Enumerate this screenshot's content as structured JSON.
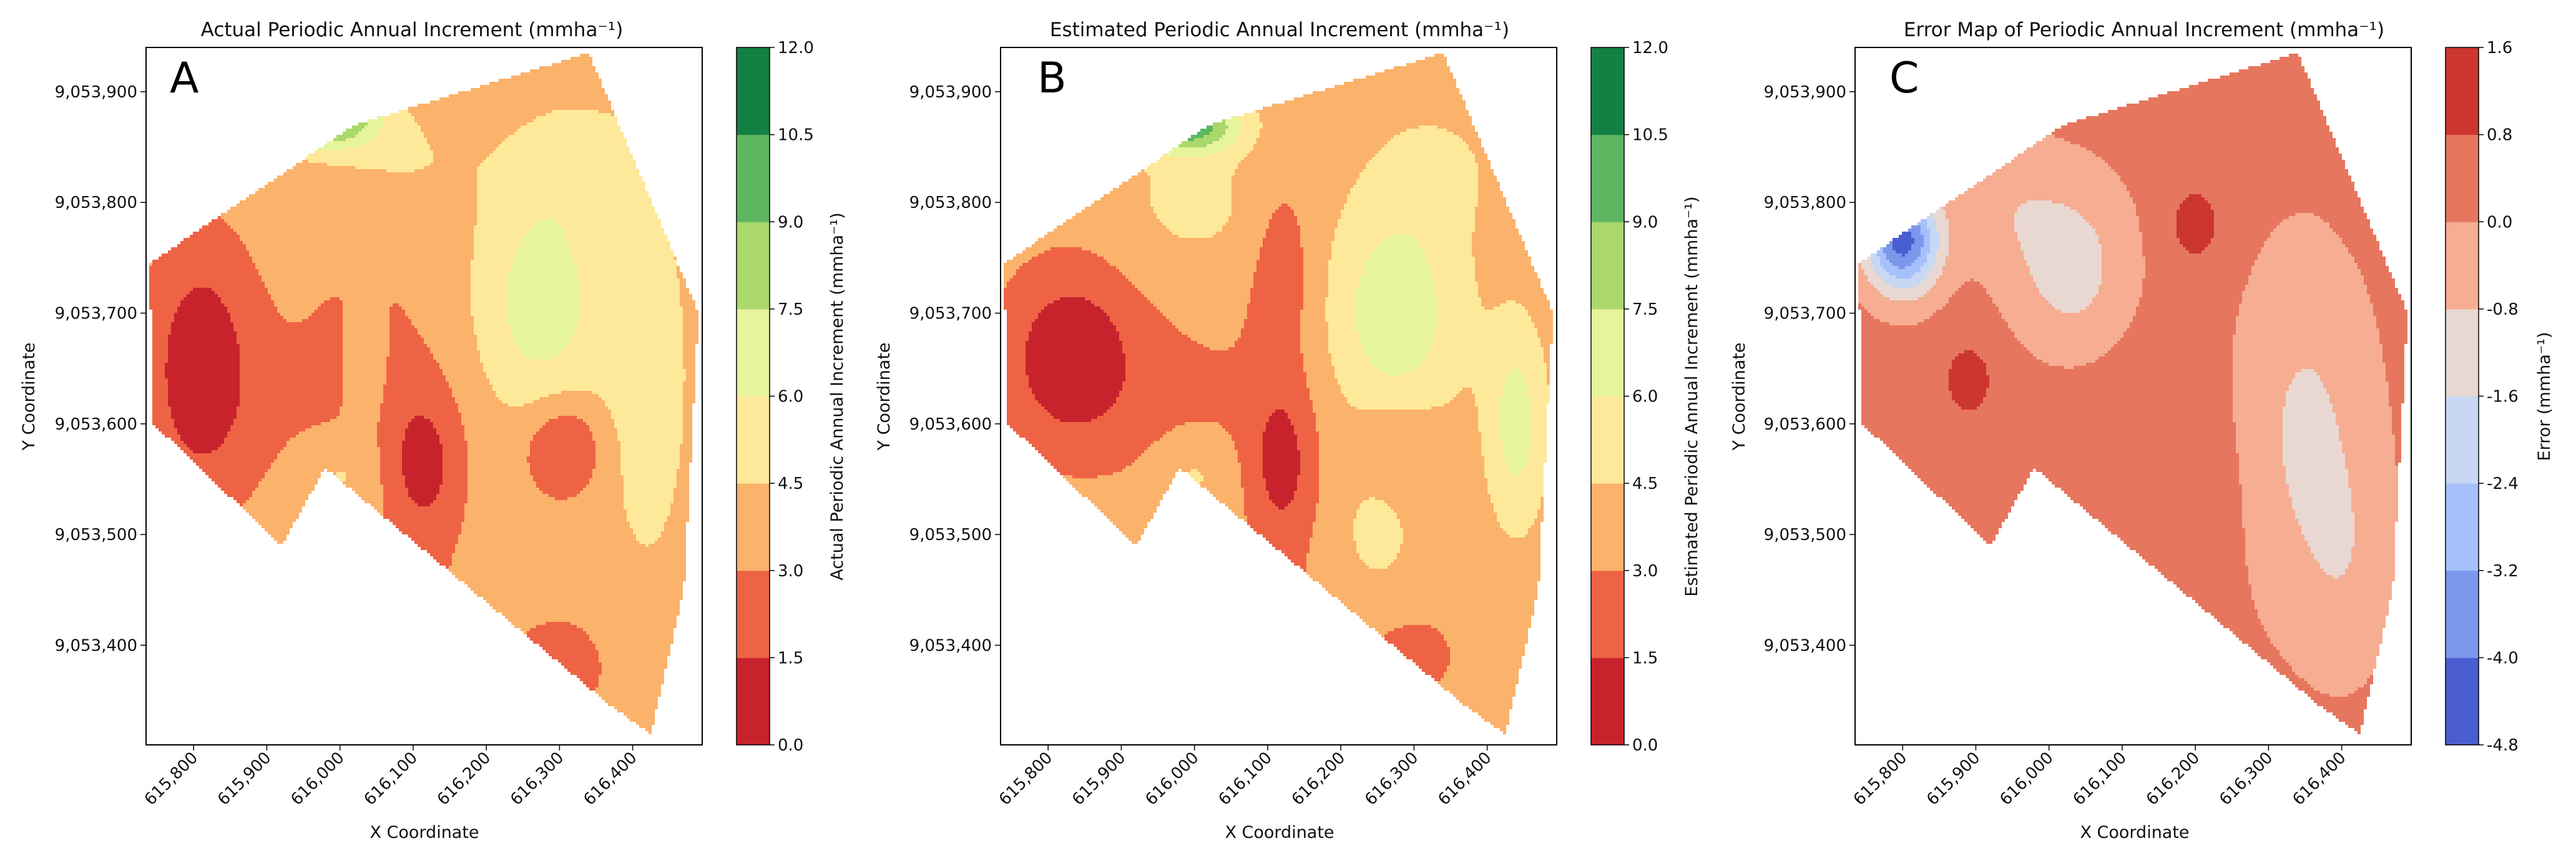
{
  "chart_data": [
    {
      "type": "heatmap",
      "panel_label": "A",
      "title": "Actual Periodic Annual Increment (mmha⁻¹)",
      "xlabel": "X Coordinate",
      "ylabel": "Y Coordinate",
      "xticks": [
        615800,
        615900,
        616000,
        616100,
        616200,
        616300,
        616400
      ],
      "xtick_labels": [
        "615,800",
        "615,900",
        "616,000",
        "616,100",
        "616,200",
        "616,300",
        "616,400"
      ],
      "xlim": [
        615735,
        616495
      ],
      "yticks": [
        9053400,
        9053500,
        9053600,
        9053700,
        9053800,
        9053900
      ],
      "ytick_labels": [
        "9,053,400",
        "9,053,500",
        "9,053,600",
        "9,053,700",
        "9,053,800",
        "9,053,900"
      ],
      "ylim": [
        9053310,
        9053940
      ],
      "colorbar": {
        "label": "Actual Periodic Annual Increment (mmha⁻¹)",
        "levels": [
          0.0,
          1.5,
          3.0,
          4.5,
          6.0,
          7.5,
          9.0,
          10.5,
          12.0
        ],
        "level_labels": [
          "0.0",
          "1.5",
          "3.0",
          "4.5",
          "6.0",
          "7.5",
          "9.0",
          "10.5",
          "12.0"
        ],
        "colors": [
          "#c8232c",
          "#ef6345",
          "#fbb26a",
          "#fee899",
          "#e6f49c",
          "#abd86a",
          "#5eb760",
          "#148144"
        ]
      },
      "field": {
        "base": 3.6,
        "hull": [
          [
            615740,
            9053745
          ],
          [
            616020,
            9053870
          ],
          [
            616340,
            9053935
          ],
          [
            616420,
            9053810
          ],
          [
            616490,
            9053700
          ],
          [
            616470,
            9053450
          ],
          [
            616425,
            9053320
          ],
          [
            616370,
            9053345
          ],
          [
            615980,
            9053560
          ],
          [
            615920,
            9053490
          ],
          [
            615745,
            9053600
          ]
        ],
        "bumps": [
          [
            615810,
            9053650,
            70,
            110,
            -3.2
          ],
          [
            616115,
            9053560,
            50,
            70,
            -2.5
          ],
          [
            616000,
            9053620,
            160,
            90,
            -0.8
          ],
          [
            616120,
            9053420,
            140,
            60,
            -0.6
          ],
          [
            616040,
            9053710,
            90,
            90,
            -0.5
          ],
          [
            616275,
            9053710,
            90,
            110,
            3.2
          ],
          [
            616420,
            9053640,
            60,
            180,
            1.8
          ],
          [
            616330,
            9053840,
            90,
            60,
            1.2
          ],
          [
            616080,
            9053840,
            120,
            50,
            1.0
          ],
          [
            616000,
            9053555,
            50,
            35,
            1.4
          ],
          [
            616035,
            9053645,
            30,
            60,
            1.2
          ],
          [
            615980,
            9053875,
            70,
            25,
            6.5
          ],
          [
            616305,
            9053580,
            55,
            45,
            -2.6
          ],
          [
            616310,
            9053380,
            70,
            50,
            -1.0
          ]
        ]
      }
    },
    {
      "type": "heatmap",
      "panel_label": "B",
      "title": "Estimated Periodic Annual Increment (mmha⁻¹)",
      "xlabel": "X Coordinate",
      "ylabel": "Y Coordinate",
      "xticks": [
        615800,
        615900,
        616000,
        616100,
        616200,
        616300,
        616400
      ],
      "xtick_labels": [
        "615,800",
        "615,900",
        "616,000",
        "616,100",
        "616,200",
        "616,300",
        "616,400"
      ],
      "xlim": [
        615735,
        616495
      ],
      "yticks": [
        9053400,
        9053500,
        9053600,
        9053700,
        9053800,
        9053900
      ],
      "ytick_labels": [
        "9,053,400",
        "9,053,500",
        "9,053,600",
        "9,053,700",
        "9,053,800",
        "9,053,900"
      ],
      "ylim": [
        9053310,
        9053940
      ],
      "colorbar": {
        "label": "Estimated Periodic Annual Increment (mmha⁻¹)",
        "levels": [
          0.0,
          1.5,
          3.0,
          4.5,
          6.0,
          7.5,
          9.0,
          10.5,
          12.0
        ],
        "level_labels": [
          "0.0",
          "1.5",
          "3.0",
          "4.5",
          "6.0",
          "7.5",
          "9.0",
          "10.5",
          "12.0"
        ],
        "colors": [
          "#c8232c",
          "#ef6345",
          "#fbb26a",
          "#fee899",
          "#e6f49c",
          "#abd86a",
          "#5eb760",
          "#148144"
        ]
      },
      "field": {
        "base": 3.7,
        "hull": [
          [
            615740,
            9053745
          ],
          [
            616020,
            9053870
          ],
          [
            616340,
            9053935
          ],
          [
            616420,
            9053810
          ],
          [
            616490,
            9053700
          ],
          [
            616470,
            9053450
          ],
          [
            616425,
            9053320
          ],
          [
            616370,
            9053345
          ],
          [
            615980,
            9053560
          ],
          [
            615920,
            9053490
          ],
          [
            615745,
            9053600
          ]
        ],
        "bumps": [
          [
            615830,
            9053660,
            90,
            80,
            -3.4
          ],
          [
            616120,
            9053560,
            45,
            75,
            -2.6
          ],
          [
            616120,
            9053740,
            45,
            90,
            -1.6
          ],
          [
            616000,
            9053620,
            150,
            90,
            -0.9
          ],
          [
            616120,
            9053430,
            120,
            50,
            -0.7
          ],
          [
            616275,
            9053700,
            90,
            100,
            3.4
          ],
          [
            616440,
            9053600,
            40,
            90,
            3.0
          ],
          [
            616330,
            9053830,
            90,
            60,
            1.0
          ],
          [
            616000,
            9053800,
            100,
            60,
            1.2
          ],
          [
            616000,
            9053555,
            50,
            35,
            1.4
          ],
          [
            616250,
            9053500,
            50,
            60,
            1.3
          ],
          [
            615990,
            9053870,
            70,
            25,
            6.5
          ],
          [
            616280,
            9053580,
            55,
            45,
            -1.4
          ],
          [
            616300,
            9053390,
            80,
            50,
            -1.0
          ],
          [
            616080,
            9053440,
            40,
            20,
            -1.5
          ]
        ]
      }
    },
    {
      "type": "heatmap",
      "panel_label": "C",
      "title": "Error Map of Periodic Annual Increment (mmha⁻¹)",
      "xlabel": "X Coordinate",
      "ylabel": "Y Coordinate",
      "xticks": [
        615800,
        615900,
        616000,
        616100,
        616200,
        616300,
        616400
      ],
      "xtick_labels": [
        "615,800",
        "615,900",
        "616,000",
        "616,100",
        "616,200",
        "616,300",
        "616,400"
      ],
      "xlim": [
        615735,
        616495
      ],
      "yticks": [
        9053400,
        9053500,
        9053600,
        9053700,
        9053800,
        9053900
      ],
      "ytick_labels": [
        "9,053,400",
        "9,053,500",
        "9,053,600",
        "9,053,700",
        "9,053,800",
        "9,053,900"
      ],
      "ylim": [
        9053310,
        9053940
      ],
      "colorbar": {
        "label": "Error (mmha⁻¹)",
        "levels": [
          -4.8,
          -4.0,
          -3.2,
          -2.4,
          -1.6,
          -0.8,
          0.0,
          0.8,
          1.6
        ],
        "level_labels": [
          "-4.8",
          "-4.0",
          "-3.2",
          "-2.4",
          "-1.6",
          "-0.8",
          "0.0",
          "0.8",
          "1.6"
        ],
        "colors": [
          "#4a5ed2",
          "#7b97ec",
          "#a5c0fb",
          "#c8d7f4",
          "#e9d8d1",
          "#f6ad92",
          "#e7765e",
          "#cc3631"
        ]
      },
      "field": {
        "base": 0.25,
        "hull": [
          [
            615740,
            9053745
          ],
          [
            616020,
            9053870
          ],
          [
            616340,
            9053935
          ],
          [
            616420,
            9053810
          ],
          [
            616490,
            9053700
          ],
          [
            616470,
            9053450
          ],
          [
            616425,
            9053320
          ],
          [
            616370,
            9053345
          ],
          [
            615980,
            9053560
          ],
          [
            615920,
            9053490
          ],
          [
            615745,
            9053600
          ]
        ],
        "bumps": [
          [
            615800,
            9053765,
            50,
            45,
            -4.6
          ],
          [
            616030,
            9053740,
            80,
            80,
            -1.5
          ],
          [
            616350,
            9053590,
            90,
            160,
            -1.2
          ],
          [
            615940,
            9053800,
            70,
            60,
            -0.7
          ],
          [
            616410,
            9053470,
            60,
            100,
            -0.6
          ],
          [
            616200,
            9053780,
            40,
            40,
            0.9
          ],
          [
            615890,
            9053640,
            35,
            35,
            0.95
          ],
          [
            616150,
            9053430,
            20,
            40,
            0.95
          ],
          [
            616420,
            9053880,
            25,
            60,
            1.2
          ],
          [
            616200,
            9053540,
            80,
            80,
            0.3
          ],
          [
            616050,
            9053620,
            130,
            120,
            0.2
          ]
        ]
      }
    }
  ]
}
